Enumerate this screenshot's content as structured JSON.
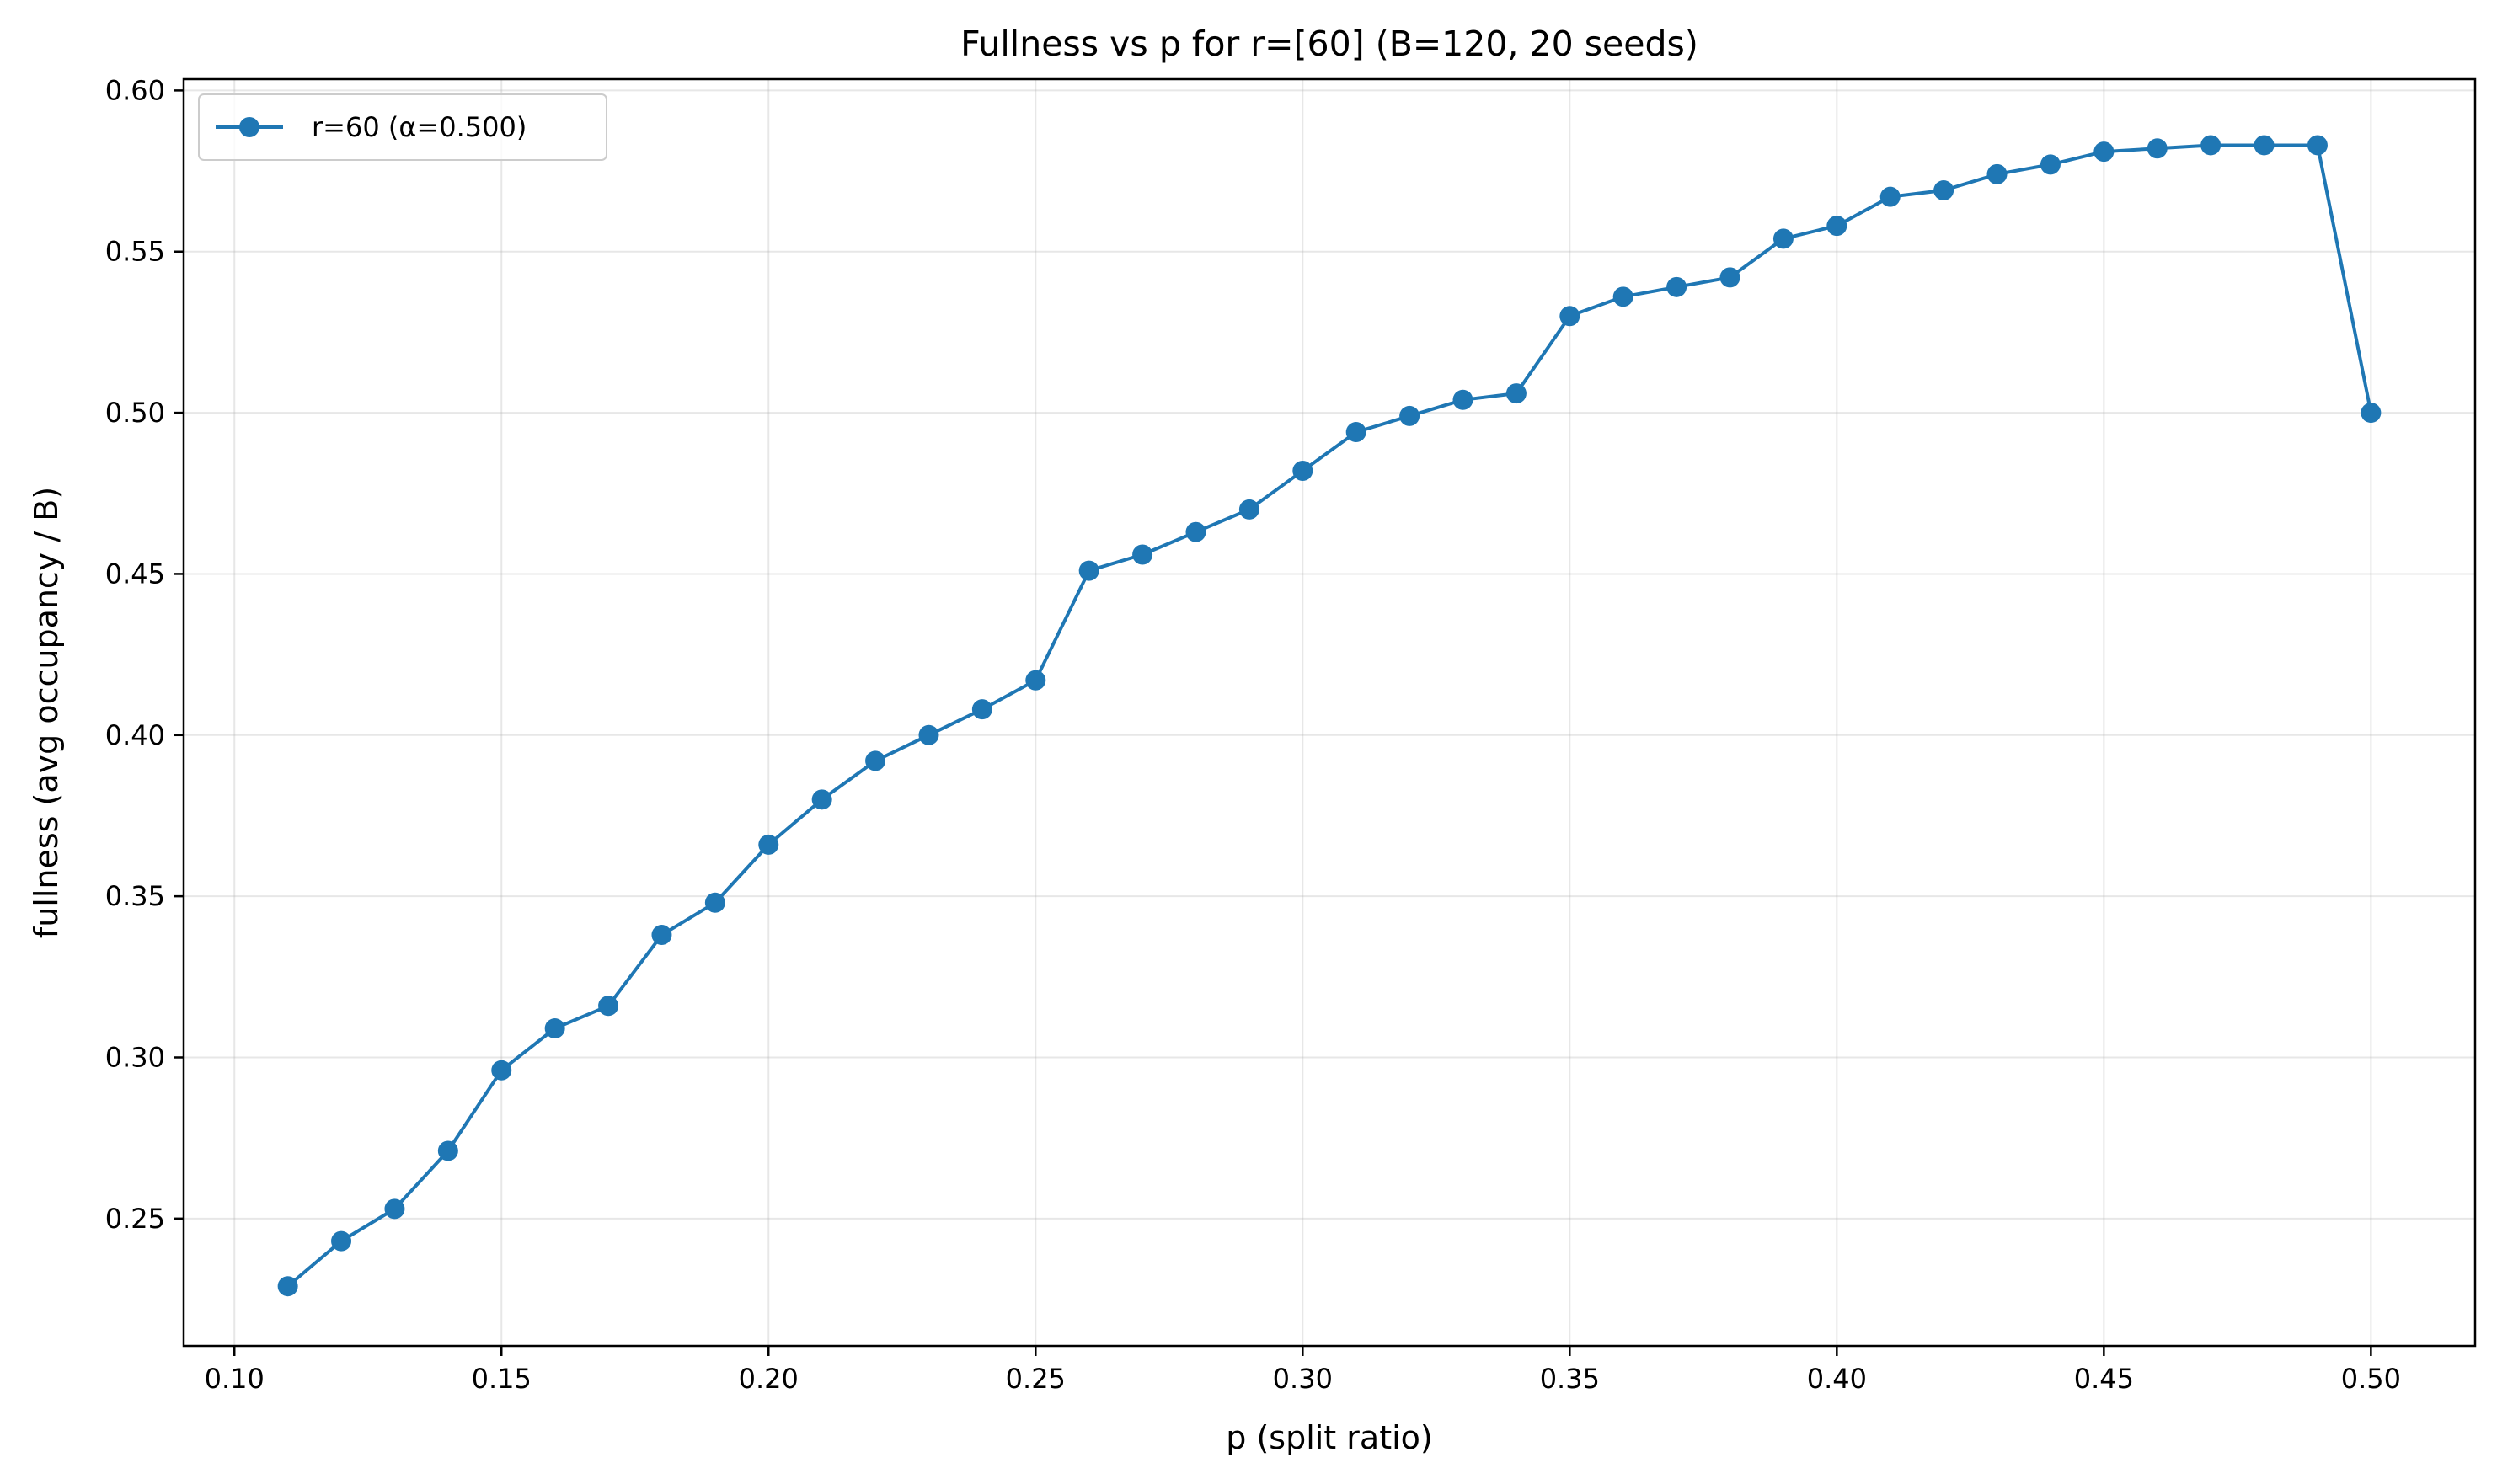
{
  "chart_data": {
    "type": "line",
    "title": "Fullness vs p for r=[60] (B=120, 20 seeds)",
    "xlabel": "p (split ratio)",
    "ylabel": "fullness (avg occupancy / B)",
    "xlim": [
      0.0905,
      0.5195
    ],
    "ylim": [
      0.2105,
      0.6035
    ],
    "xticks": [
      0.1,
      0.15,
      0.2,
      0.25,
      0.3,
      0.35,
      0.4,
      0.45,
      0.5
    ],
    "xtick_labels": [
      "0.10",
      "0.15",
      "0.20",
      "0.25",
      "0.30",
      "0.35",
      "0.40",
      "0.45",
      "0.50"
    ],
    "yticks": [
      0.25,
      0.3,
      0.35,
      0.4,
      0.45,
      0.5,
      0.55,
      0.6
    ],
    "ytick_labels": [
      "0.25",
      "0.30",
      "0.35",
      "0.40",
      "0.45",
      "0.50",
      "0.55",
      "0.60"
    ],
    "grid": true,
    "legend_position": "upper-left",
    "series": [
      {
        "name": "r=60 (α=0.500)",
        "color": "#1f77b4",
        "marker": "circle",
        "x": [
          0.11,
          0.12,
          0.13,
          0.14,
          0.15,
          0.16,
          0.17,
          0.18,
          0.19,
          0.2,
          0.21,
          0.22,
          0.23,
          0.24,
          0.25,
          0.26,
          0.27,
          0.28,
          0.29,
          0.3,
          0.31,
          0.32,
          0.33,
          0.34,
          0.35,
          0.36,
          0.37,
          0.38,
          0.39,
          0.4,
          0.41,
          0.42,
          0.43,
          0.44,
          0.45,
          0.46,
          0.47,
          0.48,
          0.49,
          0.5
        ],
        "y": [
          0.229,
          0.243,
          0.253,
          0.271,
          0.296,
          0.309,
          0.316,
          0.338,
          0.348,
          0.366,
          0.38,
          0.392,
          0.4,
          0.408,
          0.417,
          0.451,
          0.456,
          0.463,
          0.47,
          0.482,
          0.494,
          0.499,
          0.504,
          0.506,
          0.53,
          0.536,
          0.539,
          0.542,
          0.554,
          0.558,
          0.567,
          0.569,
          0.574,
          0.577,
          0.581,
          0.582,
          0.583,
          0.583,
          0.583,
          0.5
        ]
      }
    ]
  }
}
